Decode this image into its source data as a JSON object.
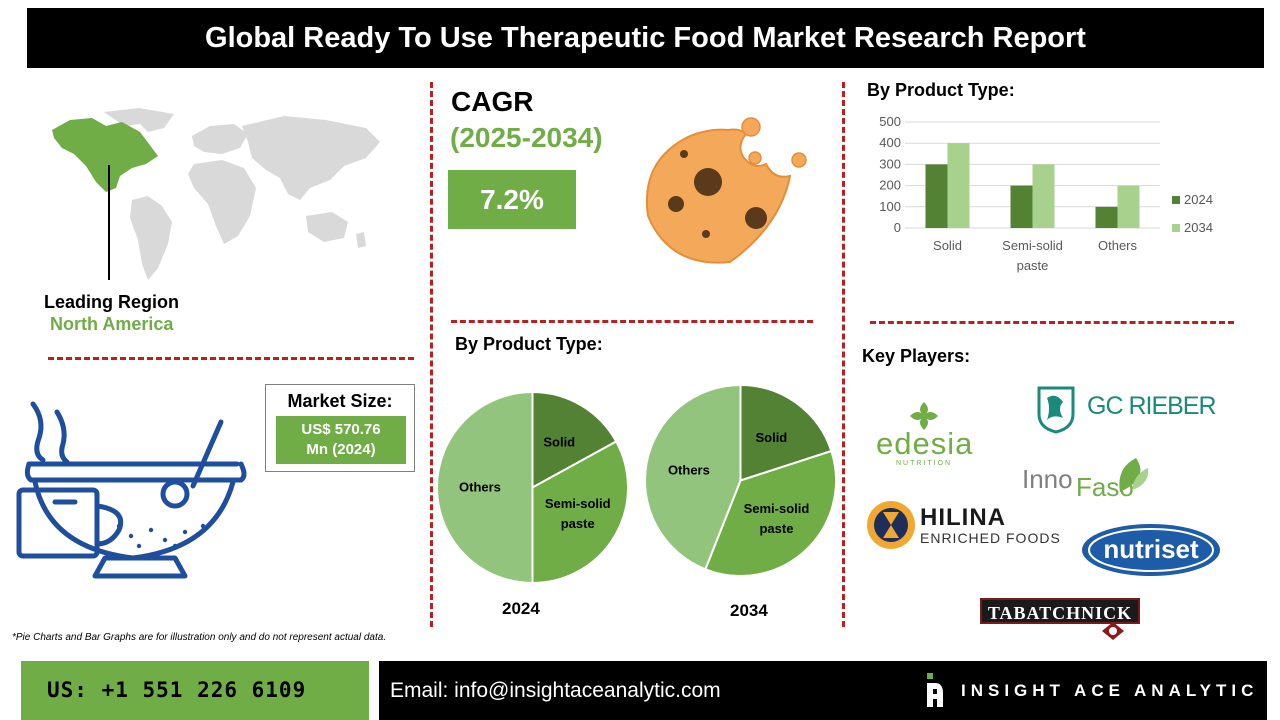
{
  "header": {
    "title": "Global Ready To Use Therapeutic Food Market Research Report"
  },
  "leading_region": {
    "label": "Leading Region",
    "value": "North America"
  },
  "market_size": {
    "label": "Market Size:",
    "value_line1": "US$ 570.76",
    "value_line2": "Mn (2024)"
  },
  "cagr": {
    "label": "CAGR",
    "years": "(2025-2034)",
    "value": "7.2%"
  },
  "sections": {
    "product_type_bar": "By Product Type:",
    "product_type_pie": "By Product Type:",
    "key_players": "Key Players:"
  },
  "colors": {
    "dark_green": "#548235",
    "mid_green": "#70ad47",
    "light_green": "#a9d18e",
    "sage_green": "#93c47d",
    "red_dash": "#b8211f",
    "navy": "#1f4e9f",
    "cookie": "#f4a85a"
  },
  "key_players": {
    "edesia": {
      "name": "edesia",
      "sub": "NUTRITION"
    },
    "gcrieber": {
      "name": "GC RIEBER"
    },
    "innofaso": {
      "name_part1": "Inno",
      "name_part2": "Faso"
    },
    "hilina": {
      "name": "HILINA",
      "sub": "ENRICHED FOODS"
    },
    "nutriset": {
      "name": "nutriset"
    },
    "tabatchnick": {
      "name": "TABATCHNICK"
    }
  },
  "note": "*Pie Charts and Bar Graphs are for illustration only and do not represent actual data.",
  "footer": {
    "phone": "US: +1 551 226 6109",
    "email": "Email: info@insightaceanalytic.com",
    "brand": "INSIGHT ACE ANALYTIC"
  },
  "chart_data": [
    {
      "type": "bar",
      "categories": [
        "Solid",
        "Semi-solid paste",
        "Others"
      ],
      "category_lines": [
        [
          "Solid"
        ],
        [
          "Semi-solid",
          "paste"
        ],
        [
          "Others"
        ]
      ],
      "series": [
        {
          "name": "2024",
          "values": [
            300,
            200,
            100
          ],
          "color": "#548235"
        },
        {
          "name": "2034",
          "values": [
            400,
            300,
            200
          ],
          "color": "#a9d18e"
        }
      ],
      "ylim": [
        0,
        500
      ],
      "yticks": [
        0,
        100,
        200,
        300,
        400,
        500
      ],
      "grid": true,
      "legend": "right"
    },
    {
      "type": "pie",
      "title": "2024",
      "slices": [
        {
          "label": "Solid",
          "label_lines": [
            "Solid"
          ],
          "value": 17,
          "color": "#548235"
        },
        {
          "label": "Semi-solid paste",
          "label_lines": [
            "Semi-solid",
            "paste"
          ],
          "value": 33,
          "color": "#70ad47"
        },
        {
          "label": "Others",
          "label_lines": [
            "Others"
          ],
          "value": 50,
          "color": "#93c47d"
        }
      ]
    },
    {
      "type": "pie",
      "title": "2034",
      "slices": [
        {
          "label": "Solid",
          "label_lines": [
            "Solid"
          ],
          "value": 20,
          "color": "#548235"
        },
        {
          "label": "Semi-solid paste",
          "label_lines": [
            "Semi-solid",
            "paste"
          ],
          "value": 36,
          "color": "#70ad47"
        },
        {
          "label": "Others",
          "label_lines": [
            "Others"
          ],
          "value": 44,
          "color": "#93c47d"
        }
      ]
    }
  ]
}
